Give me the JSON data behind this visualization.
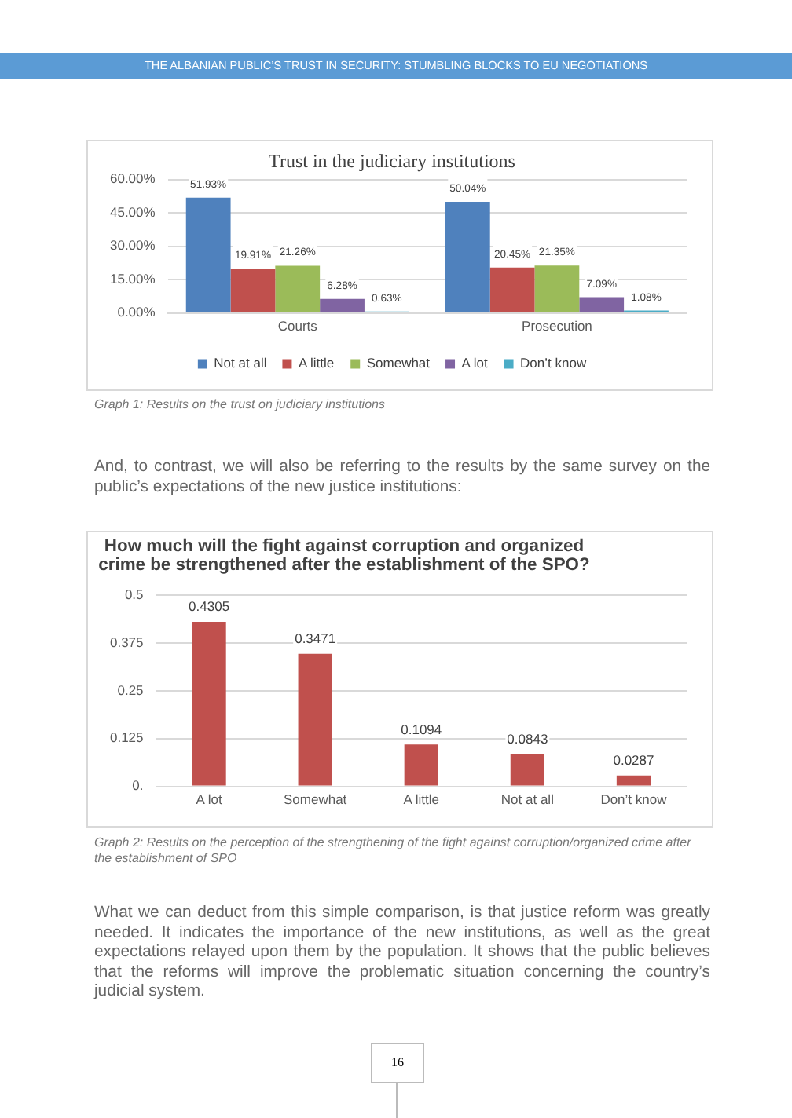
{
  "chart_data": [
    {
      "type": "bar",
      "title": "Trust in the judiciary institutions",
      "categories": [
        "Courts",
        "Prosecution"
      ],
      "series": [
        {
          "name": "Not at all",
          "color": "#4f81bd",
          "values": [
            51.93,
            50.04
          ],
          "value_labels": [
            "51.93%",
            "50.04%"
          ]
        },
        {
          "name": "A little",
          "color": "#c0504d",
          "values": [
            19.91,
            20.45
          ],
          "value_labels": [
            "19.91%",
            "20.45%"
          ]
        },
        {
          "name": "Somewhat",
          "color": "#9bbb59",
          "values": [
            21.26,
            21.35
          ],
          "value_labels": [
            "21.26%",
            "21.35%"
          ]
        },
        {
          "name": "A lot",
          "color": "#8064a2",
          "values": [
            6.28,
            7.09
          ],
          "value_labels": [
            "6.28%",
            "7.09%"
          ]
        },
        {
          "name": "Don’t know",
          "color": "#4bacc6",
          "values": [
            0.63,
            1.08
          ],
          "value_labels": [
            "0.63%",
            "1.08%"
          ]
        }
      ],
      "ylim": [
        0,
        60
      ],
      "yticks": [
        {
          "value": 0,
          "label": "0.00%"
        },
        {
          "value": 15,
          "label": "15.00%"
        },
        {
          "value": 30,
          "label": "30.00%"
        },
        {
          "value": 45,
          "label": "45.00%"
        },
        {
          "value": 60,
          "label": "60.00%"
        }
      ],
      "grid": "y",
      "legend": "bottom",
      "annotations": [
        "THE ALBANIAN PUBLIC’S TRUST IN SECURITY: STUMBLING BLOCKS TO EU NEGOTIATIONS",
        "Graph 1: Results on the trust on judiciary institutions",
        "And, to contrast, we will also be referring to the results by the same survey on the public’s expectations of the new justice institutions:"
      ]
    },
    {
      "type": "bar",
      "title": "How much will the fight against corruption and organized crime be strengthened after the establishment of the SPO?",
      "categories": [
        "A lot",
        "Somewhat",
        "A little",
        "Not at all",
        "Don’t know"
      ],
      "values": [
        0.4305,
        0.3471,
        0.1094,
        0.0843,
        0.0287
      ],
      "color": "#c0504d",
      "ylim": [
        0,
        0.5
      ],
      "yticks": [
        {
          "value": 0,
          "label": "0."
        },
        0.125,
        0.25,
        0.375,
        0.5
      ],
      "grid": "y",
      "data_labels": true,
      "annotations": [
        "Graph 2: Results on the perception of the strengthening of the fight against corruption/organized crime after the establishment of SPO",
        "What we can deduct from this simple comparison, is that justice reform was greatly needed. It indicates the importance of the new institutions, as well as the great expectations relayed upon them by the population. It shows that the public believes that the reforms will improve the problematic situation concerning the country’s judicial system.",
        "16"
      ]
    }
  ]
}
